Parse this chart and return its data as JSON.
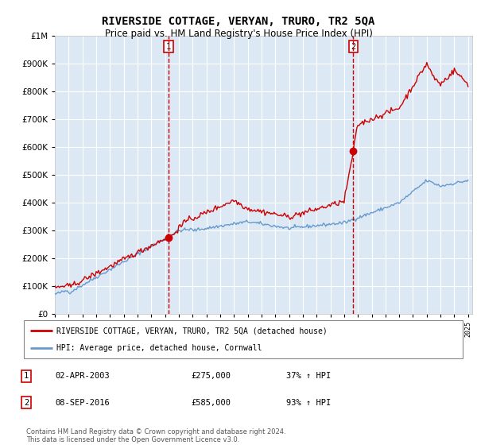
{
  "title": "RIVERSIDE COTTAGE, VERYAN, TRURO, TR2 5QA",
  "subtitle": "Price paid vs. HM Land Registry's House Price Index (HPI)",
  "legend_line1": "RIVERSIDE COTTAGE, VERYAN, TRURO, TR2 5QA (detached house)",
  "legend_line2": "HPI: Average price, detached house, Cornwall",
  "sale1_date": "02-APR-2003",
  "sale1_price": 275000,
  "sale1_pct": "37% ↑ HPI",
  "sale2_date": "08-SEP-2016",
  "sale2_price": 585000,
  "sale2_pct": "93% ↑ HPI",
  "footnote": "Contains HM Land Registry data © Crown copyright and database right 2024.\nThis data is licensed under the Open Government Licence v3.0.",
  "ylim": [
    0,
    1000000
  ],
  "red_color": "#cc0000",
  "blue_color": "#6699cc",
  "bg_color": "#dce9f5",
  "grid_color": "#ffffff",
  "dashed_color": "#cc0000",
  "start_year": 1995,
  "end_year": 2025,
  "sale1_year": 2003.25,
  "sale2_year": 2016.67,
  "sale1_val": 275000,
  "sale2_val": 585000
}
